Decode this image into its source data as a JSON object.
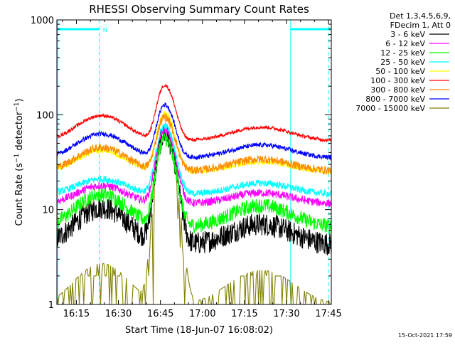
{
  "chart_data": {
    "type": "line",
    "title": "RHESSI Observing Summary Count Rates",
    "xlabel": "Start Time (18-Jun-07 16:08:02)",
    "ylabel": "Count Rate (s⁻¹ detector⁻¹)",
    "ylabel_parts": {
      "base": "Count Rate (s",
      "exp1": "−1",
      "mid": " detector",
      "exp2": "−1",
      "end": ")"
    },
    "yscale": "log",
    "ylim": [
      1,
      1000
    ],
    "xlim_min": [
      8.03,
      106.0
    ],
    "x_units": "minutes after 16:00",
    "x_ticks": [
      {
        "v": 15,
        "label": "16:15"
      },
      {
        "v": 30,
        "label": "16:30"
      },
      {
        "v": 45,
        "label": "16:45"
      },
      {
        "v": 60,
        "label": "17:00"
      },
      {
        "v": 75,
        "label": "17:15"
      },
      {
        "v": 90,
        "label": "17:30"
      },
      {
        "v": 105,
        "label": "17:45"
      }
    ],
    "y_ticks": [
      {
        "v": 1,
        "label": "1"
      },
      {
        "v": 10,
        "label": "10"
      },
      {
        "v": 100,
        "label": "100"
      },
      {
        "v": 1000,
        "label": "1000"
      }
    ],
    "legend_header": [
      "Det 1,3,4,5,6,9,",
      "FDecim 1, Att 0"
    ],
    "legend_position": "top-right, outside plot",
    "flags": {
      "night_intervals_min": [
        [
          8.03,
          23.2
        ],
        [
          91.5,
          106.0
        ]
      ],
      "saa_label": "N",
      "dashed_markers_min": [
        23.2,
        105.0
      ],
      "solid_markers_min": [
        91.5
      ],
      "color": "#00ffff"
    },
    "series": [
      {
        "name": "3 - 6 keV",
        "color": "#000000",
        "base": 4.2,
        "hump1": 10.5,
        "hump2": 7.0,
        "peak": 62,
        "noise": 0.2
      },
      {
        "name": "6 - 12 keV",
        "color": "#ff00ff",
        "base": 11.5,
        "hump1": 18.0,
        "hump2": 15.0,
        "peak": 70,
        "noise": 0.07
      },
      {
        "name": "12 - 25 keV",
        "color": "#00ff00",
        "base": 6.5,
        "hump1": 14.5,
        "hump2": 11.0,
        "peak": 56,
        "noise": 0.13
      },
      {
        "name": "25 - 50 keV",
        "color": "#00ffff",
        "base": 14.5,
        "hump1": 21.0,
        "hump2": 19.0,
        "peak": 77,
        "noise": 0.06
      },
      {
        "name": "50 - 100 keV",
        "color": "#ffff00",
        "base": 25.0,
        "hump1": 42.0,
        "hump2": 32.0,
        "peak": 105,
        "noise": 0.05
      },
      {
        "name": "100 - 300 keV",
        "color": "#ff0000",
        "base": 53.0,
        "hump1": 98.0,
        "hump2": 74.0,
        "peak": 205,
        "noise": 0.03
      },
      {
        "name": "300 - 800 keV",
        "color": "#ff8c00",
        "base": 25.5,
        "hump1": 45.0,
        "hump2": 34.0,
        "peak": 95,
        "noise": 0.07
      },
      {
        "name": "800 - 7000 keV",
        "color": "#0000ff",
        "base": 35.0,
        "hump1": 63.0,
        "hump2": 48.0,
        "peak": 128,
        "noise": 0.04
      },
      {
        "name": "7000 - 15000 keV",
        "color": "#808000",
        "base": 1.0,
        "hump1": 2.7,
        "hump2": 2.3,
        "peak": 60,
        "noise": 0.0
      }
    ],
    "shape": {
      "hump1_center_min": 24,
      "hump2_center_min": 81,
      "flare_peak_min": 46.5
    }
  },
  "footer_date": "15-Oct-2021 17:59"
}
